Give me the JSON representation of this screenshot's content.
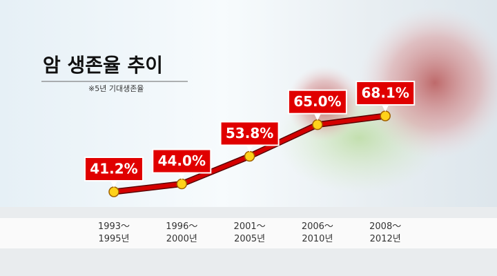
{
  "chart_data": {
    "type": "line",
    "title": "암 생존율 추이",
    "subtitle": "※5년 기대생존율",
    "categories": [
      "1993～\n1995년",
      "1996～\n2000년",
      "2001～\n2005년",
      "2006～\n2010년",
      "2008～\n2012년"
    ],
    "values": [
      41.2,
      44.0,
      53.8,
      65.0,
      68.1
    ],
    "value_labels": [
      "41.2%",
      "44.0%",
      "53.8%",
      "65.0%",
      "68.1%"
    ],
    "color": "#d40000"
  }
}
